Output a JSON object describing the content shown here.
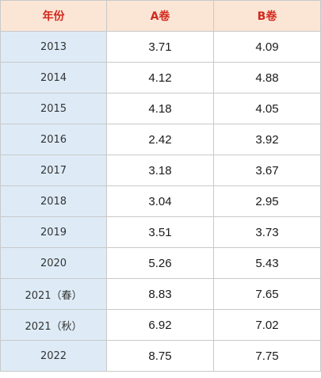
{
  "table": {
    "headers": [
      "年份",
      "A卷",
      "B卷"
    ],
    "rows": [
      {
        "year": "2013",
        "a": "3.71",
        "b": "4.09"
      },
      {
        "year": "2014",
        "a": "4.12",
        "b": "4.88"
      },
      {
        "year": "2015",
        "a": "4.18",
        "b": "4.05"
      },
      {
        "year": "2016",
        "a": "2.42",
        "b": "3.92"
      },
      {
        "year": "2017",
        "a": "3.18",
        "b": "3.67"
      },
      {
        "year": "2018",
        "a": "3.04",
        "b": "2.95"
      },
      {
        "year": "2019",
        "a": "3.51",
        "b": "3.73"
      },
      {
        "year": "2020",
        "a": "5.26",
        "b": "5.43"
      },
      {
        "year": "2021（春）",
        "a": "8.83",
        "b": "7.65"
      },
      {
        "year": "2021（秋）",
        "a": "6.92",
        "b": "7.02"
      },
      {
        "year": "2022",
        "a": "8.75",
        "b": "7.75"
      }
    ],
    "colors": {
      "header_bg": "#fbe6d6",
      "header_text": "#d22a1e",
      "year_bg": "#deebf7",
      "border": "#c9c9c9"
    }
  }
}
